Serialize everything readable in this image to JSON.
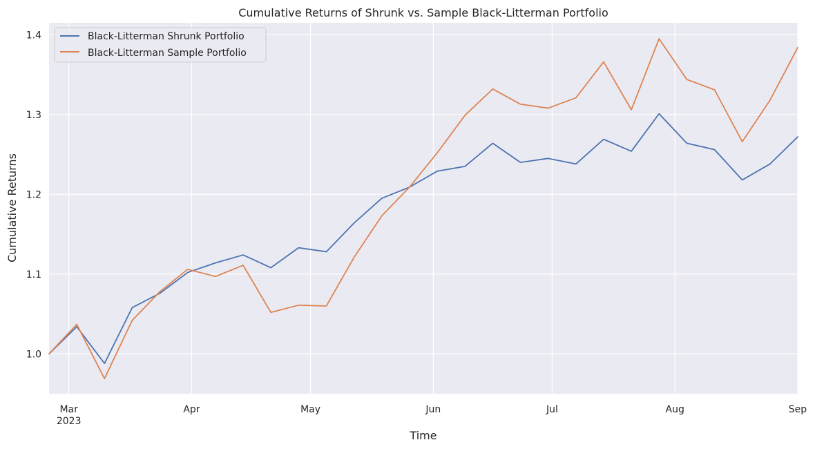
{
  "chart_data": {
    "type": "line",
    "title": "Cumulative Returns of Shrunk vs. Sample Black-Litterman Portfolio",
    "xlabel": "Time",
    "ylabel": "Cumulative Returns",
    "x": [
      "2023-02-24",
      "2023-03-03",
      "2023-03-10",
      "2023-03-17",
      "2023-03-24",
      "2023-03-31",
      "2023-04-07",
      "2023-04-14",
      "2023-04-21",
      "2023-04-28",
      "2023-05-05",
      "2023-05-12",
      "2023-05-19",
      "2023-05-26",
      "2023-06-02",
      "2023-06-09",
      "2023-06-16",
      "2023-06-23",
      "2023-06-30",
      "2023-07-07",
      "2023-07-14",
      "2023-07-21",
      "2023-07-28",
      "2023-08-04",
      "2023-08-11",
      "2023-08-18",
      "2023-08-25",
      "2023-09-01"
    ],
    "series": [
      {
        "name": "Black-Litterman Shrunk Portfolio",
        "color": "#4c72b0",
        "values": [
          1.0,
          1.034,
          0.988,
          1.058,
          1.076,
          1.102,
          1.114,
          1.124,
          1.108,
          1.133,
          1.128,
          1.164,
          1.195,
          1.209,
          1.229,
          1.235,
          1.264,
          1.24,
          1.245,
          1.238,
          1.269,
          1.254,
          1.301,
          1.264,
          1.256,
          1.218,
          1.238,
          1.272
        ]
      },
      {
        "name": "Black-Litterman Sample Portfolio",
        "color": "#dd8452",
        "values": [
          1.0,
          1.037,
          0.969,
          1.042,
          1.078,
          1.106,
          1.097,
          1.111,
          1.052,
          1.061,
          1.06,
          1.121,
          1.173,
          1.209,
          1.252,
          1.299,
          1.332,
          1.313,
          1.308,
          1.321,
          1.366,
          1.306,
          1.395,
          1.344,
          1.331,
          1.266,
          1.318,
          1.384
        ]
      }
    ],
    "ylim": [
      0.95,
      1.415
    ],
    "xlim": [
      "2023-02-24",
      "2023-09-01"
    ],
    "yticks": [
      1.0,
      1.1,
      1.2,
      1.3,
      1.4
    ],
    "ytick_labels": [
      "1.0",
      "1.1",
      "1.2",
      "1.3",
      "1.4"
    ],
    "xticks": [
      {
        "date": "2023-03-01",
        "label": "Mar",
        "sublabel": "2023"
      },
      {
        "date": "2023-04-01",
        "label": "Apr",
        "sublabel": ""
      },
      {
        "date": "2023-05-01",
        "label": "May",
        "sublabel": ""
      },
      {
        "date": "2023-06-01",
        "label": "Jun",
        "sublabel": ""
      },
      {
        "date": "2023-07-01",
        "label": "Jul",
        "sublabel": ""
      },
      {
        "date": "2023-08-01",
        "label": "Aug",
        "sublabel": ""
      },
      {
        "date": "2023-09-01",
        "label": "Sep",
        "sublabel": ""
      }
    ],
    "grid": true,
    "legend_position": "top-left",
    "plot_background": "#eaeaf2",
    "grid_color": "#ffffff"
  }
}
